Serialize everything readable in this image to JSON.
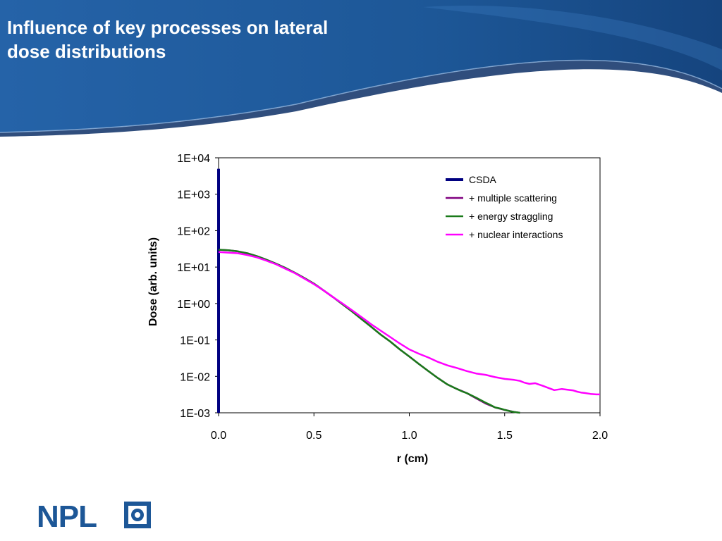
{
  "slide": {
    "title_line1": "Influence of key processes on lateral",
    "title_line2": "dose distributions"
  },
  "logo": {
    "text": "NPL",
    "icon": "npl-crest-icon"
  },
  "colors": {
    "header_blue": "#1d5797",
    "header_dark": "#0c2f66",
    "csda": "#000080",
    "multiple_scattering": "#800080",
    "energy_straggling": "#1a7a1a",
    "nuclear_interactions": "#ff00ff"
  },
  "chart_data": {
    "type": "line",
    "title": "",
    "xlabel": "r (cm)",
    "ylabel": "Dose (arb. units)",
    "xlim": [
      0,
      2
    ],
    "ylim": [
      0.001,
      10000
    ],
    "yscale": "log",
    "grid": false,
    "legend_position": "top-right",
    "x_ticks": [
      {
        "value": 0,
        "label": "0.0"
      },
      {
        "value": 0.5,
        "label": "0.5"
      },
      {
        "value": 1,
        "label": "1.0"
      },
      {
        "value": 1.5,
        "label": "1.5"
      },
      {
        "value": 2,
        "label": "2.0"
      }
    ],
    "y_ticks": [
      {
        "value": 10000,
        "label": "1E+04"
      },
      {
        "value": 1000,
        "label": "1E+03"
      },
      {
        "value": 100,
        "label": "1E+02"
      },
      {
        "value": 10,
        "label": "1E+01"
      },
      {
        "value": 1,
        "label": "1E+00"
      },
      {
        "value": 0.1,
        "label": "1E-01"
      },
      {
        "value": 0.01,
        "label": "1E-02"
      },
      {
        "value": 0.001,
        "label": "1E-03"
      }
    ],
    "series": [
      {
        "name": "CSDA",
        "color": "#000080",
        "x": [
          0,
          0
        ],
        "y": [
          5000,
          0.001
        ]
      },
      {
        "name": "+ multiple scattering",
        "color": "#800080",
        "x": [
          0,
          0.05,
          0.1,
          0.15,
          0.2,
          0.25,
          0.3,
          0.35,
          0.4,
          0.45,
          0.5,
          0.55,
          0.6,
          0.65,
          0.7,
          0.75,
          0.8,
          0.85,
          0.9,
          0.95,
          1.0,
          1.05,
          1.1,
          1.15,
          1.2,
          1.25,
          1.3,
          1.35,
          1.4,
          1.45,
          1.5,
          1.55,
          1.58
        ],
        "y": [
          30,
          29,
          27,
          24,
          20,
          16,
          12.5,
          9.5,
          7,
          5,
          3.5,
          2.3,
          1.5,
          0.95,
          0.6,
          0.37,
          0.23,
          0.14,
          0.09,
          0.055,
          0.035,
          0.022,
          0.014,
          0.009,
          0.006,
          0.0045,
          0.0035,
          0.0025,
          0.0018,
          0.0014,
          0.0012,
          0.00105,
          0.001
        ]
      },
      {
        "name": "+ energy straggling",
        "color": "#1a7a1a",
        "x": [
          0,
          0.05,
          0.1,
          0.15,
          0.2,
          0.25,
          0.3,
          0.35,
          0.4,
          0.45,
          0.5,
          0.55,
          0.6,
          0.65,
          0.7,
          0.75,
          0.8,
          0.85,
          0.9,
          0.95,
          1.0,
          1.05,
          1.1,
          1.15,
          1.2,
          1.25,
          1.28,
          1.3,
          1.35,
          1.4,
          1.42,
          1.45,
          1.48,
          1.5,
          1.53,
          1.55,
          1.58
        ],
        "y": [
          30,
          29,
          27,
          24,
          20,
          16,
          12.5,
          9.5,
          7,
          5,
          3.5,
          2.3,
          1.5,
          0.95,
          0.6,
          0.37,
          0.23,
          0.14,
          0.09,
          0.055,
          0.035,
          0.022,
          0.014,
          0.009,
          0.006,
          0.0045,
          0.0038,
          0.0035,
          0.0026,
          0.0019,
          0.0017,
          0.0014,
          0.0013,
          0.0012,
          0.0011,
          0.00105,
          0.001
        ]
      },
      {
        "name": "+ nuclear interactions",
        "color": "#ff00ff",
        "x": [
          0,
          0.05,
          0.1,
          0.15,
          0.2,
          0.25,
          0.3,
          0.35,
          0.4,
          0.45,
          0.5,
          0.55,
          0.6,
          0.65,
          0.7,
          0.75,
          0.8,
          0.85,
          0.9,
          0.95,
          1.0,
          1.05,
          1.1,
          1.15,
          1.2,
          1.25,
          1.3,
          1.35,
          1.4,
          1.45,
          1.5,
          1.55,
          1.58,
          1.6,
          1.63,
          1.66,
          1.7,
          1.73,
          1.76,
          1.8,
          1.83,
          1.86,
          1.88,
          1.9,
          1.92,
          1.95,
          1.98,
          2.0
        ],
        "y": [
          26,
          25,
          24,
          21.5,
          18.5,
          15,
          12,
          9,
          6.8,
          4.8,
          3.4,
          2.3,
          1.5,
          1.0,
          0.65,
          0.42,
          0.27,
          0.18,
          0.12,
          0.08,
          0.055,
          0.042,
          0.033,
          0.025,
          0.02,
          0.017,
          0.014,
          0.012,
          0.011,
          0.0095,
          0.0085,
          0.008,
          0.0075,
          0.0068,
          0.0062,
          0.0065,
          0.0055,
          0.0048,
          0.0042,
          0.0045,
          0.0043,
          0.0041,
          0.0038,
          0.0036,
          0.0035,
          0.0033,
          0.0032,
          0.0032
        ]
      }
    ]
  }
}
